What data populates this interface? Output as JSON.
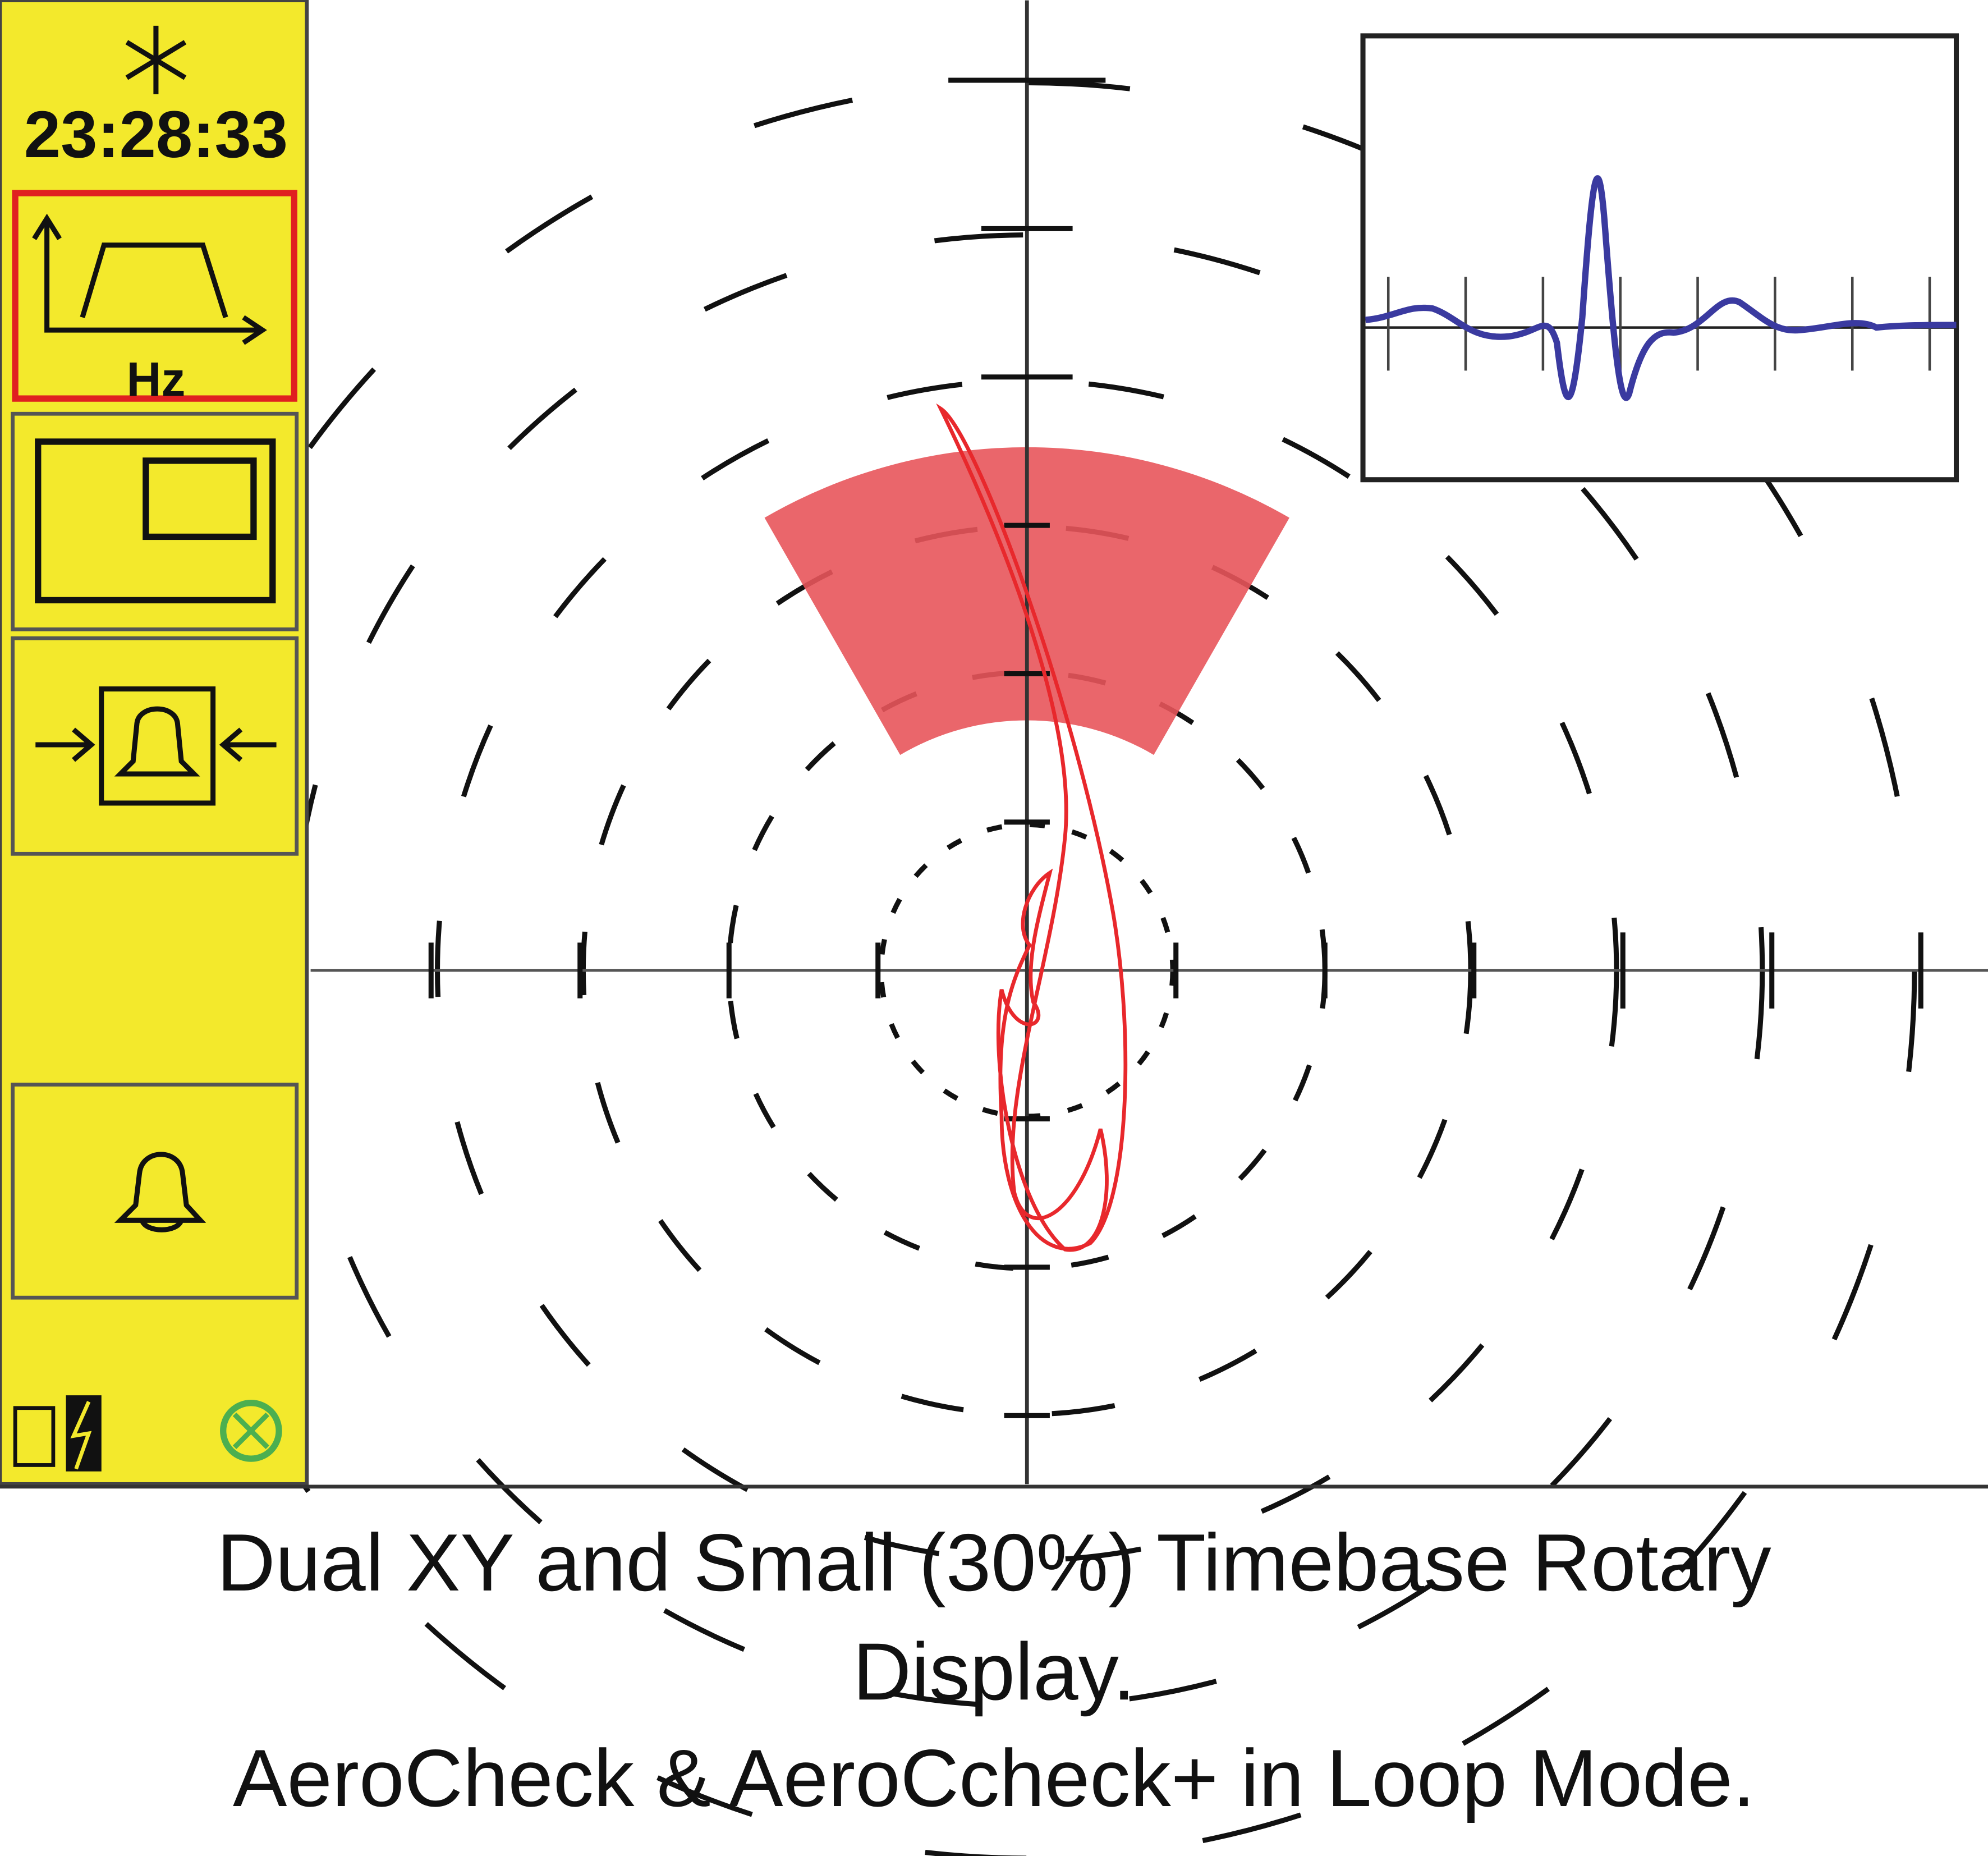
{
  "status": {
    "time": "23:28:33"
  },
  "filter_button": {
    "label": "Hz"
  },
  "caption": {
    "lines": [
      "Dual XY and Small (30%) Timebase Rotary",
      "Display.",
      "AeroCheck & AeroCcheck+ in Loop Mode."
    ]
  }
}
